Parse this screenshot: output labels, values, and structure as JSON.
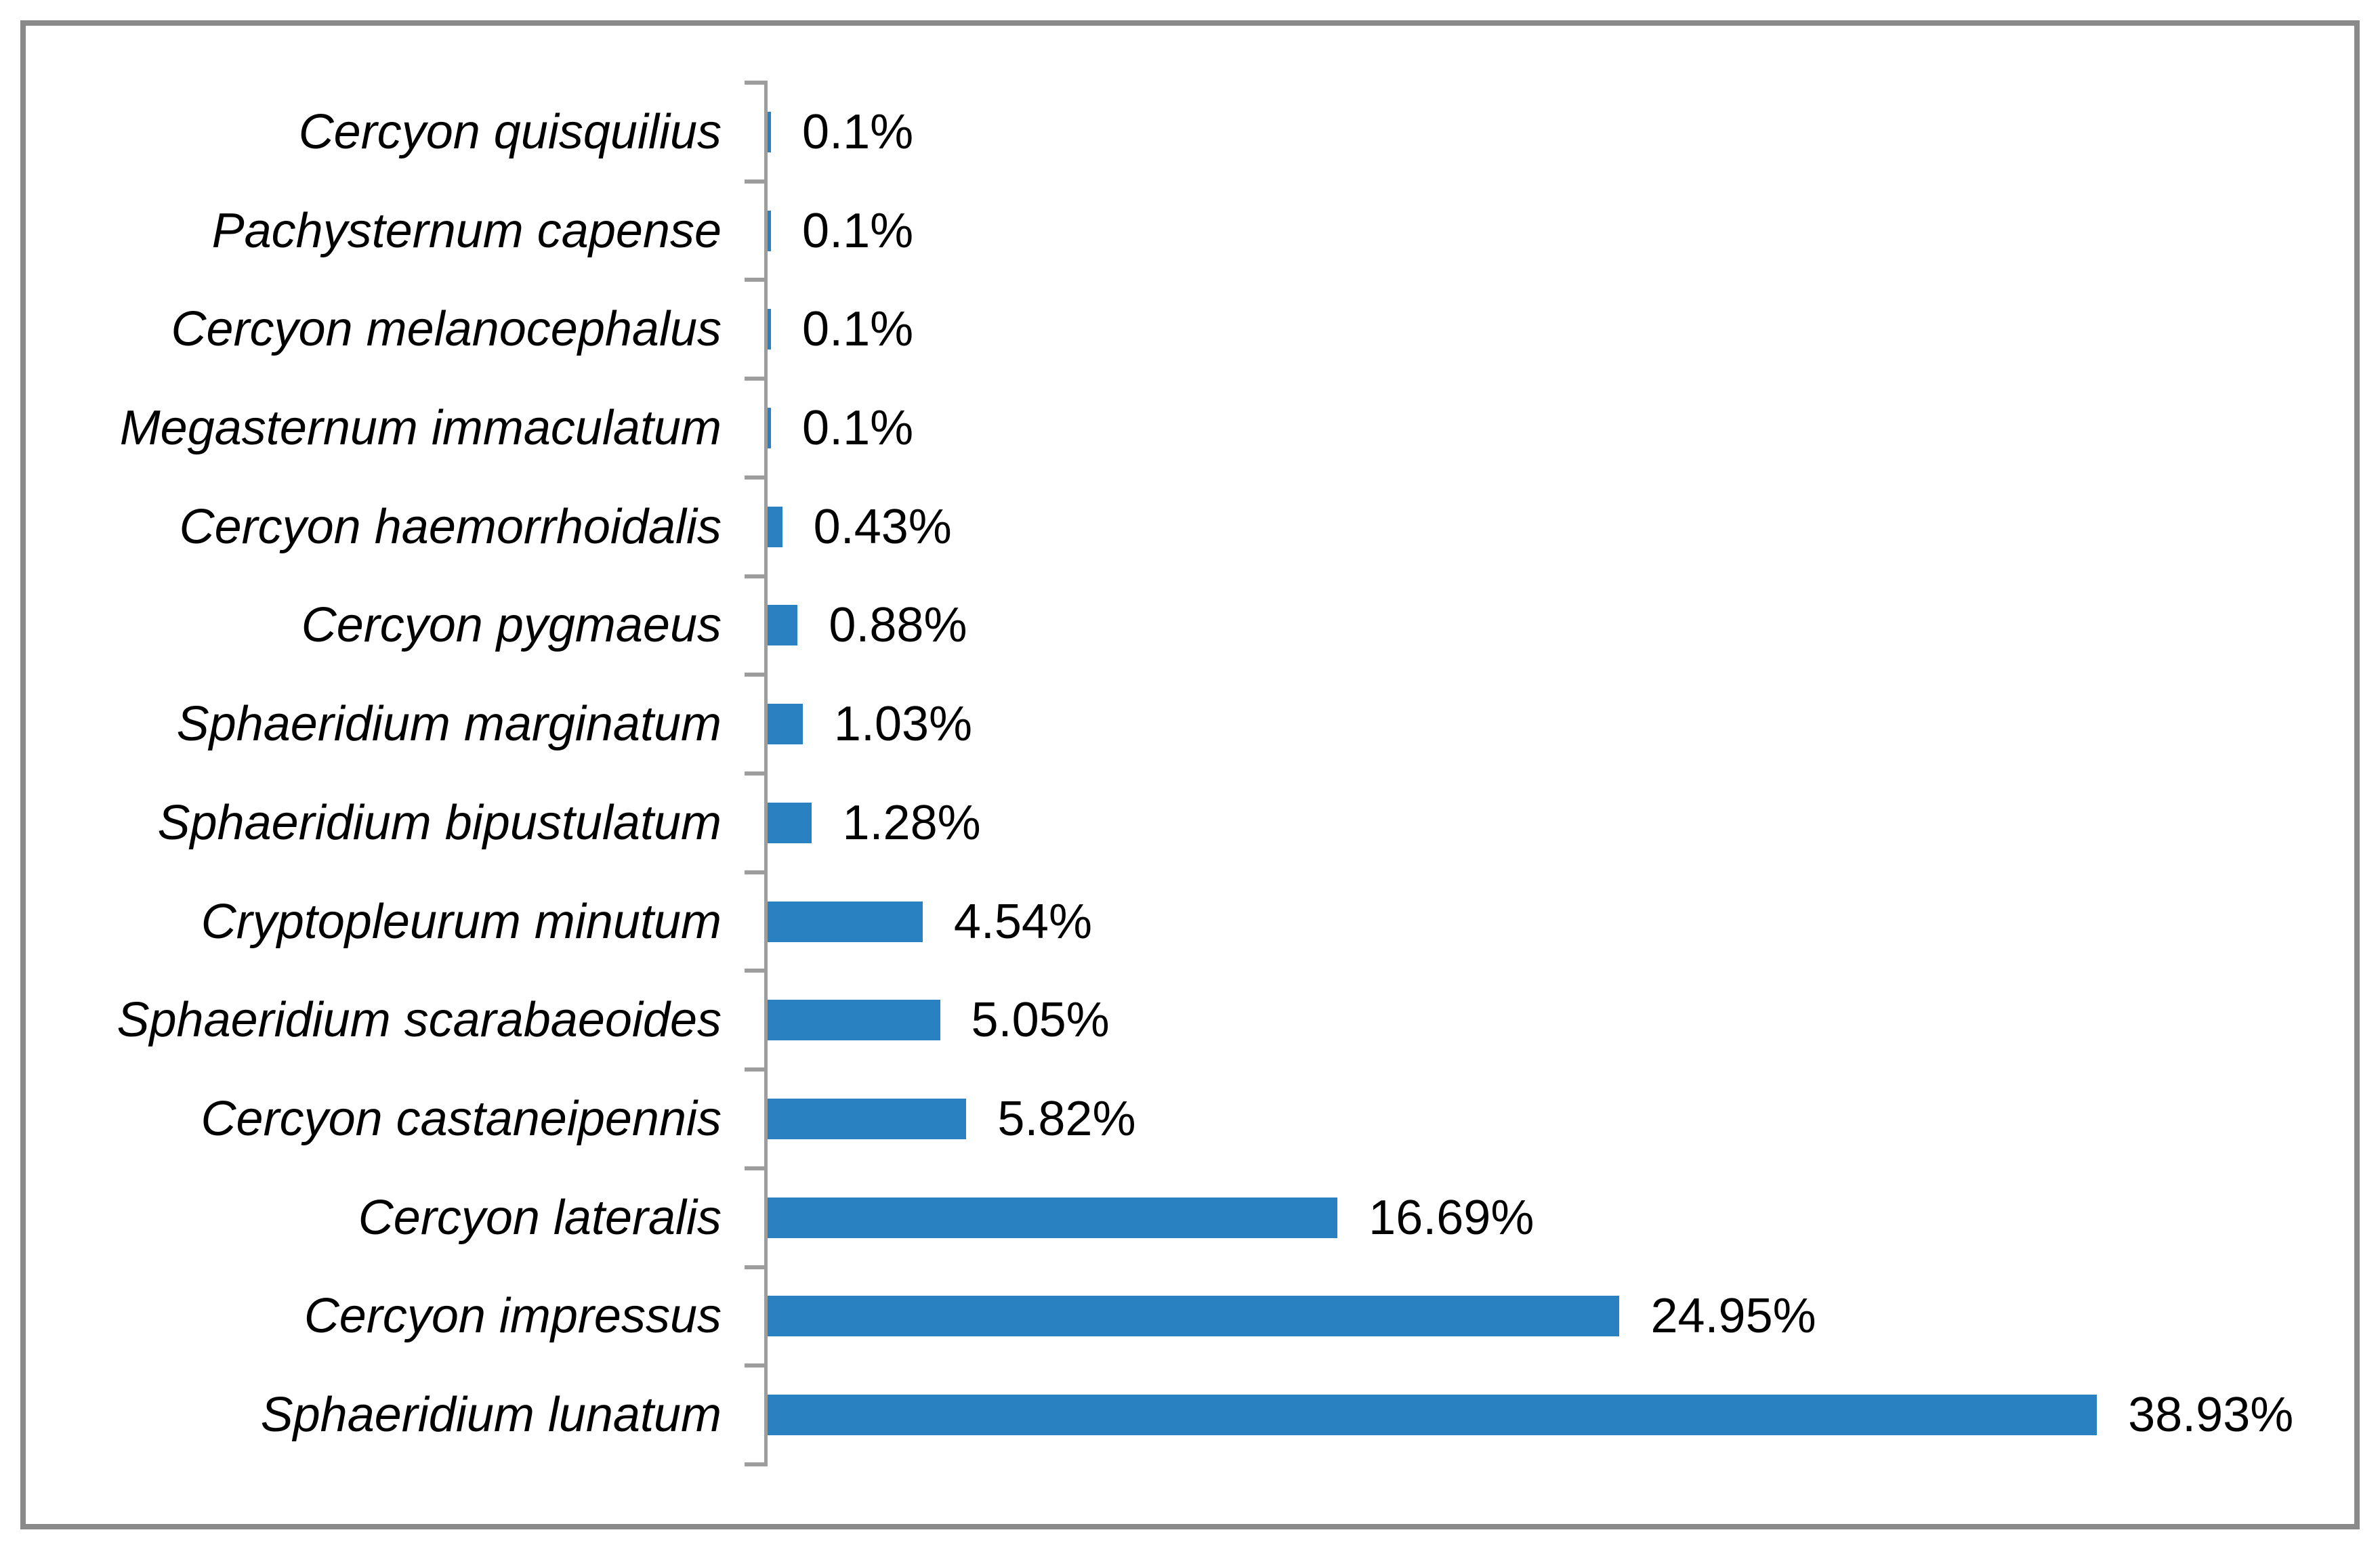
{
  "chart_data": {
    "type": "bar",
    "orientation": "horizontal",
    "title": "",
    "xlabel": "",
    "ylabel": "",
    "grid": false,
    "legend_position": "none",
    "xlim": [
      0,
      45
    ],
    "categories": [
      "Cercyon quisquilius",
      "Pachysternum capense",
      "Cercyon melanocephalus",
      "Megasternum immaculatum",
      "Cercyon haemorrhoidalis",
      "Cercyon pygmaeus",
      "Sphaeridium marginatum",
      "Sphaeridium bipustulatum",
      "Cryptopleurum minutum",
      "Sphaeridium scarabaeoides",
      "Cercyon castaneipennis",
      "Cercyon lateralis",
      "Cercyon impressus",
      "Sphaeridium lunatum"
    ],
    "values": [
      0.1,
      0.1,
      0.1,
      0.1,
      0.43,
      0.88,
      1.03,
      1.28,
      4.54,
      5.05,
      5.82,
      16.69,
      24.95,
      38.93
    ],
    "value_labels": [
      "0.1%",
      "0.1%",
      "0.1%",
      "0.1%",
      "0.43%",
      "0.88%",
      "1.03%",
      "1.28%",
      "4.54%",
      "5.05%",
      "5.82%",
      "16.69%",
      "24.95%",
      "38.93%"
    ],
    "colors": {
      "bar": "#2a81c1",
      "axis": "#9d9d9d",
      "frame_border": "#8a8a8a",
      "text": "#000000"
    }
  }
}
